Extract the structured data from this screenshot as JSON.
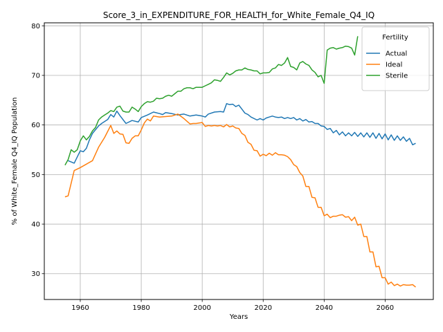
{
  "chart_data": {
    "type": "line",
    "title": "Score_3_in_EXPENDITURE_FOR_HEALTH_for_White_Female_Q4_IQ",
    "xlabel": "Years",
    "ylabel": "% of White_Female Q4_IQ Population",
    "xlim": [
      1948.2,
      2075.8
    ],
    "ylim": [
      24.8,
      80.6
    ],
    "xticks": [
      1960,
      1980,
      2000,
      2020,
      2040,
      2060
    ],
    "yticks": [
      30,
      40,
      50,
      60,
      70,
      80
    ],
    "grid": true,
    "legend": {
      "title": "Fertility",
      "position": "top-right"
    },
    "series": [
      {
        "name": "Actual",
        "color": "#1f77b4",
        "x": [
          1956,
          1958,
          1960,
          1961,
          1962,
          1963,
          1964,
          1966,
          1967,
          1969,
          1970,
          1971,
          1972,
          1973,
          1975,
          1977,
          1979,
          1980,
          1982,
          1984,
          1986,
          1987,
          1988,
          1990,
          1992,
          1994,
          1996,
          1998,
          2000,
          2001,
          2002,
          2004,
          2006,
          2007,
          2008,
          2009,
          2010,
          2011,
          2012,
          2013,
          2014,
          2015,
          2016,
          2018,
          2019,
          2020,
          2021,
          2022,
          2023,
          2024,
          2025,
          2026,
          2027,
          2028,
          2029,
          2030,
          2031,
          2032,
          2033,
          2034,
          2035,
          2036,
          2037,
          2038,
          2039,
          2040,
          2041,
          2042,
          2043,
          2044,
          2045,
          2046,
          2047,
          2048,
          2049,
          2050,
          2051,
          2052,
          2053,
          2054,
          2055,
          2056,
          2057,
          2058,
          2059,
          2060,
          2061,
          2062,
          2063,
          2064,
          2065,
          2066,
          2067,
          2068,
          2069,
          2070
        ],
        "y": [
          52.8,
          52.3,
          54.8,
          54.6,
          55.3,
          57.0,
          58.3,
          59.8,
          60.3,
          61.1,
          62.1,
          61.6,
          62.8,
          61.9,
          60.3,
          60.9,
          60.6,
          61.5,
          62.0,
          62.6,
          62.3,
          62.1,
          62.5,
          62.3,
          62.0,
          62.2,
          61.8,
          62.0,
          61.8,
          61.6,
          62.2,
          62.6,
          62.7,
          62.6,
          64.3,
          64.1,
          64.2,
          63.7,
          64.0,
          63.2,
          62.4,
          62.1,
          61.6,
          61.0,
          61.3,
          61.0,
          61.4,
          61.6,
          61.8,
          61.6,
          61.5,
          61.6,
          61.3,
          61.5,
          61.3,
          61.5,
          61.0,
          61.3,
          60.8,
          61.1,
          60.6,
          60.7,
          60.3,
          60.3,
          59.8,
          59.7,
          59.1,
          59.3,
          58.4,
          58.9,
          58.0,
          58.6,
          57.8,
          58.4,
          57.8,
          58.5,
          57.7,
          58.4,
          57.6,
          58.4,
          57.5,
          58.4,
          57.3,
          58.3,
          57.2,
          58.2,
          57.0,
          58.0,
          56.9,
          57.8,
          56.9,
          57.6,
          56.7,
          57.3,
          56.0,
          56.3
        ]
      },
      {
        "name": "Ideal",
        "color": "#ff7f0e",
        "x": [
          1955,
          1956,
          1958,
          1960,
          1962,
          1964,
          1966,
          1968,
          1970,
          1971,
          1972,
          1973,
          1974,
          1975,
          1976,
          1977,
          1978,
          1979,
          1980,
          1981,
          1982,
          1983,
          1984,
          1986,
          1988,
          1990,
          1992,
          1994,
          1996,
          1997,
          1998,
          2000,
          2001,
          2002,
          2003,
          2004,
          2005,
          2006,
          2007,
          2008,
          2009,
          2010,
          2011,
          2012,
          2013,
          2014,
          2015,
          2016,
          2017,
          2018,
          2019,
          2020,
          2021,
          2022,
          2023,
          2024,
          2025,
          2026,
          2027,
          2028,
          2029,
          2030,
          2031,
          2032,
          2033,
          2034,
          2035,
          2036,
          2037,
          2038,
          2039,
          2040,
          2041,
          2042,
          2043,
          2044,
          2045,
          2046,
          2047,
          2048,
          2049,
          2050,
          2051,
          2052,
          2053,
          2054,
          2055,
          2056,
          2057,
          2058,
          2059,
          2060,
          2061,
          2062,
          2063,
          2064,
          2065,
          2066,
          2067,
          2068,
          2069,
          2070
        ],
        "y": [
          45.5,
          45.7,
          50.8,
          51.4,
          52.1,
          52.8,
          55.5,
          57.5,
          59.9,
          58.3,
          58.8,
          58.2,
          58.1,
          56.4,
          56.3,
          57.3,
          57.8,
          57.8,
          59.0,
          60.4,
          61.2,
          60.8,
          61.8,
          61.6,
          61.7,
          61.8,
          62.2,
          61.3,
          60.2,
          60.3,
          60.3,
          60.5,
          59.7,
          59.9,
          59.8,
          59.9,
          59.8,
          59.9,
          59.6,
          60.1,
          59.6,
          59.8,
          59.4,
          59.3,
          58.3,
          57.9,
          56.5,
          56.1,
          54.9,
          54.8,
          53.7,
          54.1,
          53.8,
          54.3,
          53.9,
          54.4,
          54.0,
          54.0,
          53.9,
          53.6,
          53.0,
          52.0,
          51.6,
          50.4,
          49.7,
          47.6,
          47.6,
          45.4,
          45.3,
          43.4,
          43.4,
          41.7,
          42.0,
          41.3,
          41.6,
          41.6,
          41.8,
          41.9,
          41.4,
          41.5,
          40.7,
          41.4,
          39.8,
          40.0,
          37.5,
          37.5,
          34.4,
          34.4,
          31.4,
          31.5,
          29.2,
          29.2,
          27.9,
          28.3,
          27.6,
          27.9,
          27.5,
          27.8,
          27.7,
          27.7,
          27.8,
          27.3
        ]
      },
      {
        "name": "Sterile",
        "color": "#2ca02c",
        "x": [
          1955,
          1956,
          1957,
          1958,
          1959,
          1960,
          1961,
          1962,
          1963,
          1964,
          1965,
          1966,
          1967,
          1968,
          1969,
          1970,
          1971,
          1972,
          1973,
          1974,
          1975,
          1976,
          1977,
          1978,
          1979,
          1980,
          1981,
          1982,
          1983,
          1984,
          1985,
          1986,
          1987,
          1988,
          1989,
          1990,
          1991,
          1992,
          1993,
          1994,
          1995,
          1996,
          1997,
          1998,
          1999,
          2000,
          2001,
          2002,
          2003,
          2004,
          2005,
          2006,
          2007,
          2008,
          2009,
          2010,
          2011,
          2012,
          2013,
          2014,
          2015,
          2016,
          2017,
          2018,
          2019,
          2020,
          2021,
          2022,
          2023,
          2024,
          2025,
          2026,
          2027,
          2028,
          2029,
          2030,
          2031,
          2032,
          2033,
          2034,
          2035,
          2036,
          2037,
          2038,
          2039,
          2040,
          2041,
          2042,
          2043,
          2044,
          2045,
          2046,
          2047,
          2048,
          2049,
          2050,
          2051
        ],
        "y": [
          51.9,
          53.0,
          55.0,
          54.5,
          55.0,
          56.8,
          57.8,
          57.0,
          57.7,
          58.8,
          59.5,
          61.0,
          61.6,
          62.0,
          62.4,
          62.9,
          62.7,
          63.6,
          63.8,
          62.8,
          62.6,
          62.6,
          63.6,
          63.2,
          62.7,
          63.7,
          64.3,
          64.7,
          64.6,
          64.8,
          65.4,
          65.3,
          65.4,
          65.8,
          66.0,
          65.8,
          66.3,
          66.8,
          66.8,
          67.3,
          67.5,
          67.5,
          67.3,
          67.6,
          67.6,
          67.6,
          67.9,
          68.2,
          68.5,
          69.1,
          69.0,
          68.8,
          69.6,
          70.5,
          70.1,
          70.4,
          70.9,
          71.1,
          71.1,
          71.5,
          71.2,
          71.1,
          70.9,
          70.9,
          70.3,
          70.5,
          70.5,
          70.6,
          71.3,
          71.5,
          72.2,
          72.0,
          72.5,
          73.6,
          71.8,
          71.6,
          71.1,
          72.5,
          72.8,
          72.3,
          72.0,
          71.1,
          70.6,
          69.7,
          70.0,
          68.4,
          75.1,
          75.5,
          75.6,
          75.3,
          75.5,
          75.6,
          75.9,
          75.8,
          75.5,
          74.1,
          77.9
        ]
      }
    ]
  }
}
